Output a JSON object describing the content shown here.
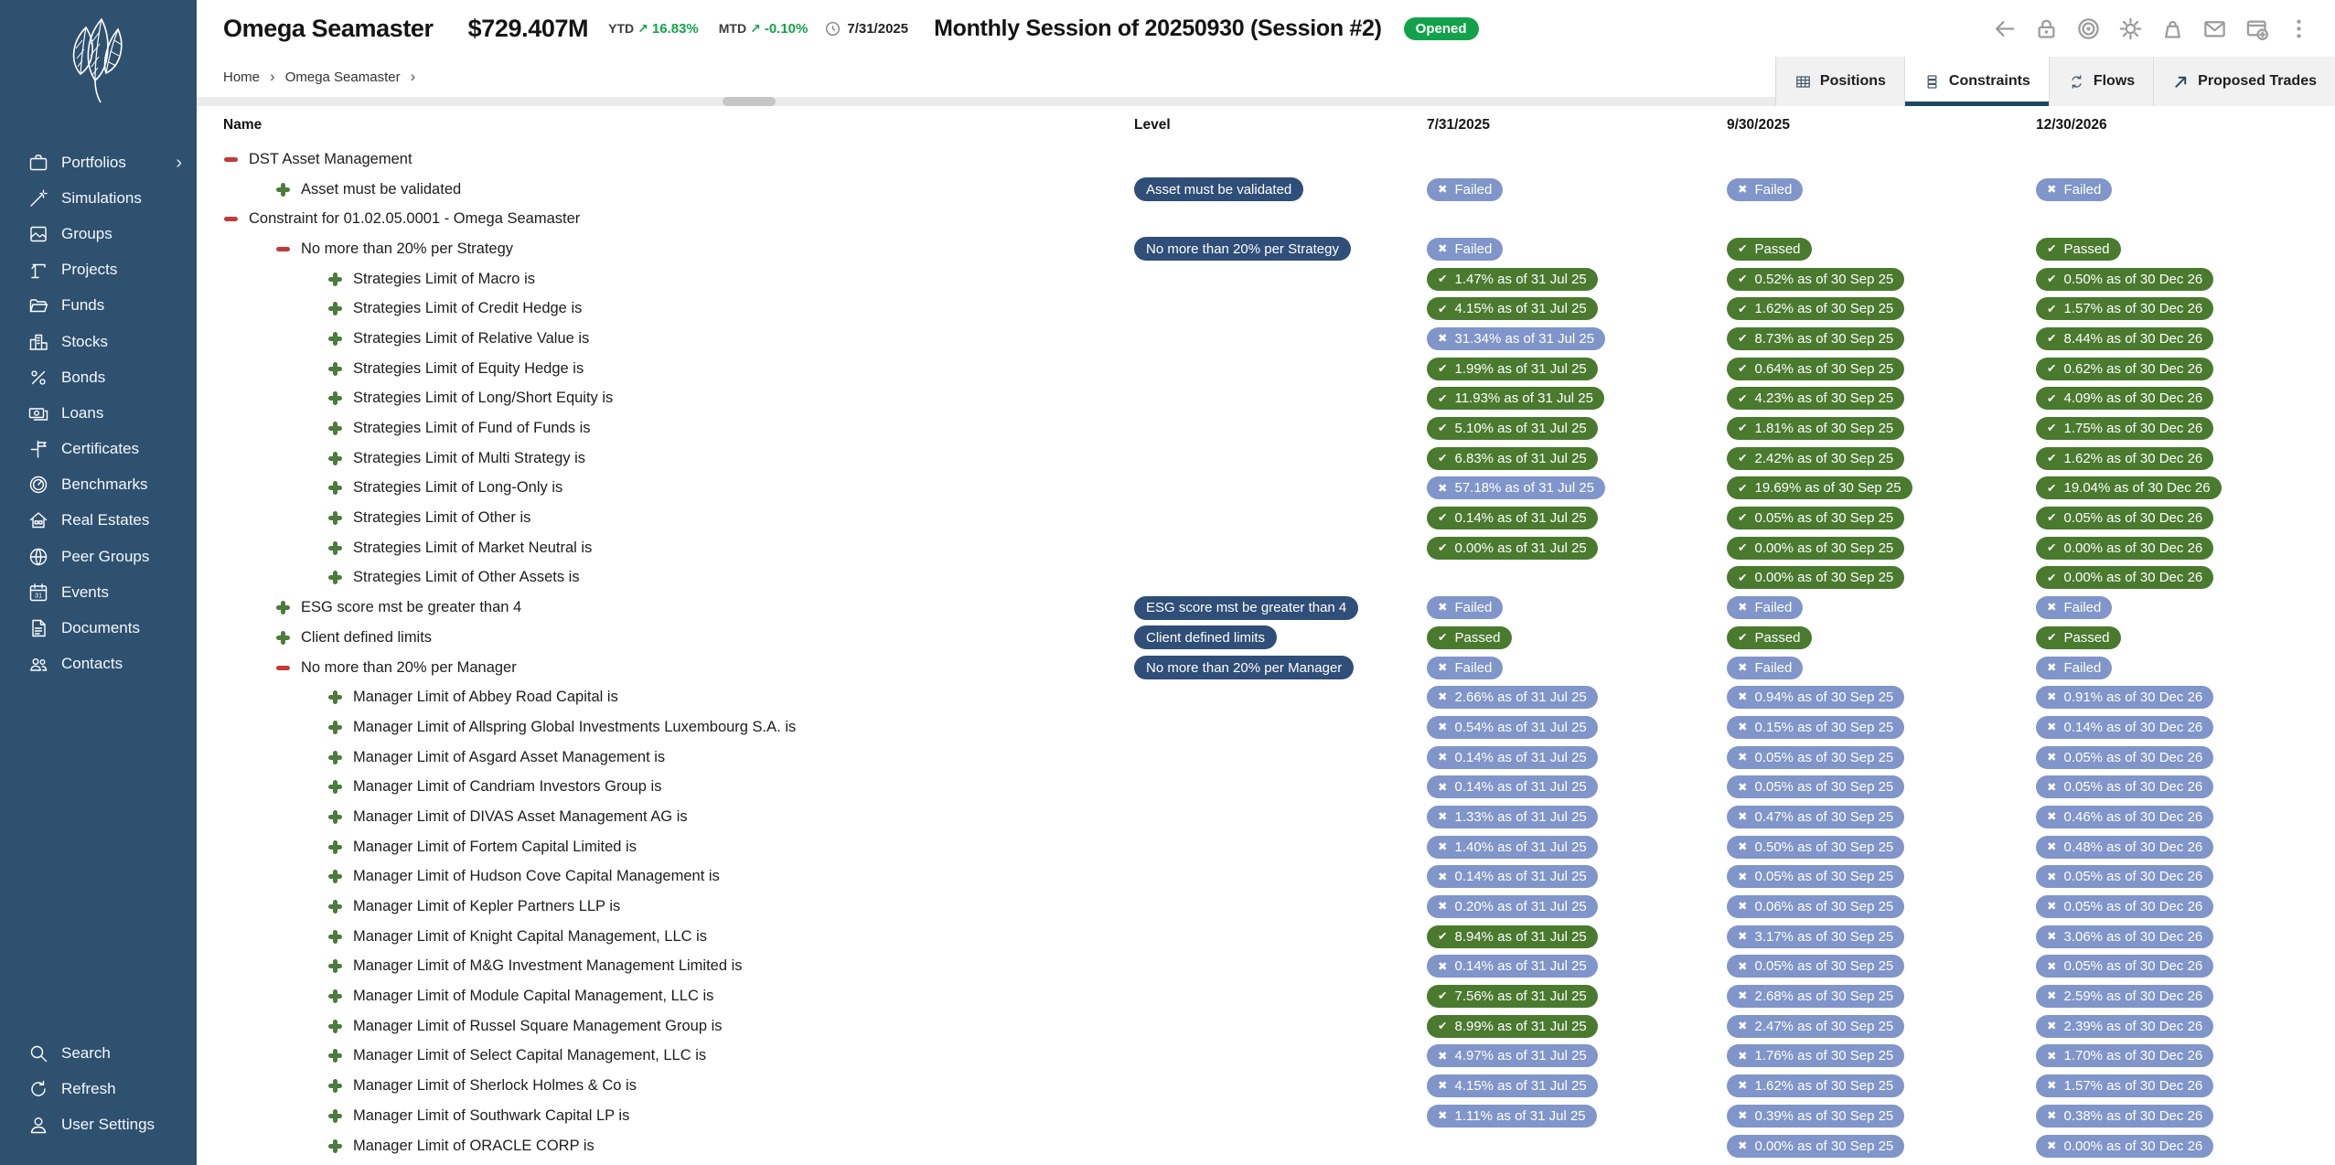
{
  "header": {
    "title": "Omega Seamaster",
    "value": "$729.407M",
    "ytd_label": "YTD",
    "ytd_value": "16.83%",
    "mtd_label": "MTD",
    "mtd_value": "-0.10%",
    "as_of_date": "7/31/2025",
    "session_title": "Monthly Session of 20250930 (Session #2)",
    "status": "Opened",
    "toolbar": [
      {
        "icon": "back-icon"
      },
      {
        "icon": "lock-icon"
      },
      {
        "icon": "target-icon"
      },
      {
        "icon": "gear-icon"
      },
      {
        "icon": "weight-icon"
      },
      {
        "icon": "mail-icon"
      },
      {
        "icon": "new-window-icon"
      },
      {
        "icon": "kebab-menu-icon"
      }
    ]
  },
  "breadcrumb": [
    "Home",
    "Omega Seamaster"
  ],
  "tabs": [
    {
      "label": "Positions",
      "icon": "grid-icon",
      "active": false
    },
    {
      "label": "Constraints",
      "icon": "stack-icon",
      "active": true
    },
    {
      "label": "Flows",
      "icon": "cycle-icon",
      "active": false
    },
    {
      "label": "Proposed Trades",
      "icon": "trade-arrow-icon",
      "active": false
    }
  ],
  "sidebar": {
    "items": [
      {
        "label": "Portfolios",
        "icon": "briefcase-icon",
        "chevron": true
      },
      {
        "label": "Simulations",
        "icon": "wand-icon"
      },
      {
        "label": "Groups",
        "icon": "picture-icon"
      },
      {
        "label": "Projects",
        "icon": "crane-icon"
      },
      {
        "label": "Funds",
        "icon": "folder-icon"
      },
      {
        "label": "Stocks",
        "icon": "buildings-icon"
      },
      {
        "label": "Bonds",
        "icon": "percent-icon"
      },
      {
        "label": "Loans",
        "icon": "cash-icon"
      },
      {
        "label": "Certificates",
        "icon": "signpost-icon"
      },
      {
        "label": "Benchmarks",
        "icon": "gauge-icon"
      },
      {
        "label": "Real Estates",
        "icon": "house-icon"
      },
      {
        "label": "Peer Groups",
        "icon": "globe-icon"
      },
      {
        "label": "Events",
        "icon": "calendar-icon"
      },
      {
        "label": "Documents",
        "icon": "document-icon"
      },
      {
        "label": "Contacts",
        "icon": "people-icon"
      }
    ],
    "footer": [
      {
        "label": "Search",
        "icon": "search-icon"
      },
      {
        "label": "Refresh",
        "icon": "refresh-icon"
      },
      {
        "label": "User Settings",
        "icon": "user-icon"
      }
    ]
  },
  "table": {
    "columns": [
      "Name",
      "Level",
      "7/31/2025",
      "9/30/2025",
      "12/30/2026"
    ],
    "rows": [
      {
        "name": "DST Asset Management",
        "indent": 0,
        "toggle": "minus",
        "level": null,
        "cells": [
          null,
          null,
          null
        ]
      },
      {
        "name": "Asset must be validated",
        "indent": 1,
        "toggle": "plus",
        "level": "Asset must be validated",
        "cells": [
          [
            "Failed",
            "fail"
          ],
          [
            "Failed",
            "fail"
          ],
          [
            "Failed",
            "fail"
          ]
        ]
      },
      {
        "name": "Constraint for 01.02.05.0001 - Omega Seamaster",
        "indent": 0,
        "toggle": "minus",
        "level": null,
        "cells": [
          null,
          null,
          null
        ]
      },
      {
        "name": "No more than 20% per Strategy",
        "indent": 1,
        "toggle": "minus",
        "level": "No more than 20% per Strategy",
        "cells": [
          [
            "Failed",
            "fail"
          ],
          [
            "Passed",
            "pass"
          ],
          [
            "Passed",
            "pass"
          ]
        ]
      },
      {
        "name": "Strategies Limit of Macro is",
        "indent": 2,
        "toggle": "plus",
        "level": null,
        "cells": [
          [
            "1.47% as of 31 Jul 25",
            "pass"
          ],
          [
            "0.52% as of 30 Sep 25",
            "pass"
          ],
          [
            "0.50% as of 30 Dec 26",
            "pass"
          ]
        ]
      },
      {
        "name": "Strategies Limit of Credit Hedge is",
        "indent": 2,
        "toggle": "plus",
        "level": null,
        "cells": [
          [
            "4.15% as of 31 Jul 25",
            "pass"
          ],
          [
            "1.62% as of 30 Sep 25",
            "pass"
          ],
          [
            "1.57% as of 30 Dec 26",
            "pass"
          ]
        ]
      },
      {
        "name": "Strategies Limit of Relative Value is",
        "indent": 2,
        "toggle": "plus",
        "level": null,
        "cells": [
          [
            "31.34% as of 31 Jul 25",
            "fail"
          ],
          [
            "8.73% as of 30 Sep 25",
            "pass"
          ],
          [
            "8.44% as of 30 Dec 26",
            "pass"
          ]
        ]
      },
      {
        "name": "Strategies Limit of Equity Hedge is",
        "indent": 2,
        "toggle": "plus",
        "level": null,
        "cells": [
          [
            "1.99% as of 31 Jul 25",
            "pass"
          ],
          [
            "0.64% as of 30 Sep 25",
            "pass"
          ],
          [
            "0.62% as of 30 Dec 26",
            "pass"
          ]
        ]
      },
      {
        "name": "Strategies Limit of Long/Short Equity is",
        "indent": 2,
        "toggle": "plus",
        "level": null,
        "cells": [
          [
            "11.93% as of 31 Jul 25",
            "pass"
          ],
          [
            "4.23% as of 30 Sep 25",
            "pass"
          ],
          [
            "4.09% as of 30 Dec 26",
            "pass"
          ]
        ]
      },
      {
        "name": "Strategies Limit of Fund of Funds is",
        "indent": 2,
        "toggle": "plus",
        "level": null,
        "cells": [
          [
            "5.10% as of 31 Jul 25",
            "pass"
          ],
          [
            "1.81% as of 30 Sep 25",
            "pass"
          ],
          [
            "1.75% as of 30 Dec 26",
            "pass"
          ]
        ]
      },
      {
        "name": "Strategies Limit of Multi Strategy is",
        "indent": 2,
        "toggle": "plus",
        "level": null,
        "cells": [
          [
            "6.83% as of 31 Jul 25",
            "pass"
          ],
          [
            "2.42% as of 30 Sep 25",
            "pass"
          ],
          [
            "1.62% as of 30 Dec 26",
            "pass"
          ]
        ]
      },
      {
        "name": "Strategies Limit of Long-Only is",
        "indent": 2,
        "toggle": "plus",
        "level": null,
        "cells": [
          [
            "57.18% as of 31 Jul 25",
            "fail"
          ],
          [
            "19.69% as of 30 Sep 25",
            "pass"
          ],
          [
            "19.04% as of 30 Dec 26",
            "pass"
          ]
        ]
      },
      {
        "name": "Strategies Limit of Other is",
        "indent": 2,
        "toggle": "plus",
        "level": null,
        "cells": [
          [
            "0.14% as of 31 Jul 25",
            "pass"
          ],
          [
            "0.05% as of 30 Sep 25",
            "pass"
          ],
          [
            "0.05% as of 30 Dec 26",
            "pass"
          ]
        ]
      },
      {
        "name": "Strategies Limit of Market Neutral is",
        "indent": 2,
        "toggle": "plus",
        "level": null,
        "cells": [
          [
            "0.00% as of 31 Jul 25",
            "pass"
          ],
          [
            "0.00% as of 30 Sep 25",
            "pass"
          ],
          [
            "0.00% as of 30 Dec 26",
            "pass"
          ]
        ]
      },
      {
        "name": "Strategies Limit of Other Assets is",
        "indent": 2,
        "toggle": "plus",
        "level": null,
        "cells": [
          null,
          [
            "0.00% as of 30 Sep 25",
            "pass"
          ],
          [
            "0.00% as of 30 Dec 26",
            "pass"
          ]
        ]
      },
      {
        "name": "ESG score mst be greater than 4",
        "indent": 1,
        "toggle": "plus",
        "level": "ESG score mst be greater than 4",
        "cells": [
          [
            "Failed",
            "fail"
          ],
          [
            "Failed",
            "fail"
          ],
          [
            "Failed",
            "fail"
          ]
        ]
      },
      {
        "name": "Client defined limits",
        "indent": 1,
        "toggle": "plus",
        "level": "Client defined limits",
        "cells": [
          [
            "Passed",
            "pass"
          ],
          [
            "Passed",
            "pass"
          ],
          [
            "Passed",
            "pass"
          ]
        ]
      },
      {
        "name": "No more than 20% per Manager",
        "indent": 1,
        "toggle": "minus",
        "level": "No more than 20% per Manager",
        "cells": [
          [
            "Failed",
            "fail"
          ],
          [
            "Failed",
            "fail"
          ],
          [
            "Failed",
            "fail"
          ]
        ]
      },
      {
        "name": "Manager Limit of Abbey Road Capital is",
        "indent": 2,
        "toggle": "plus",
        "level": null,
        "cells": [
          [
            "2.66% as of 31 Jul 25",
            "fail"
          ],
          [
            "0.94% as of 30 Sep 25",
            "fail"
          ],
          [
            "0.91% as of 30 Dec 26",
            "fail"
          ]
        ]
      },
      {
        "name": "Manager Limit of Allspring Global Investments Luxembourg S.A. is",
        "indent": 2,
        "toggle": "plus",
        "level": null,
        "cells": [
          [
            "0.54% as of 31 Jul 25",
            "fail"
          ],
          [
            "0.15% as of 30 Sep 25",
            "fail"
          ],
          [
            "0.14% as of 30 Dec 26",
            "fail"
          ]
        ]
      },
      {
        "name": "Manager Limit of Asgard Asset Management is",
        "indent": 2,
        "toggle": "plus",
        "level": null,
        "cells": [
          [
            "0.14% as of 31 Jul 25",
            "fail"
          ],
          [
            "0.05% as of 30 Sep 25",
            "fail"
          ],
          [
            "0.05% as of 30 Dec 26",
            "fail"
          ]
        ]
      },
      {
        "name": "Manager Limit of Candriam Investors Group is",
        "indent": 2,
        "toggle": "plus",
        "level": null,
        "cells": [
          [
            "0.14% as of 31 Jul 25",
            "fail"
          ],
          [
            "0.05% as of 30 Sep 25",
            "fail"
          ],
          [
            "0.05% as of 30 Dec 26",
            "fail"
          ]
        ]
      },
      {
        "name": "Manager Limit of DIVAS Asset Management AG is",
        "indent": 2,
        "toggle": "plus",
        "level": null,
        "cells": [
          [
            "1.33% as of 31 Jul 25",
            "fail"
          ],
          [
            "0.47% as of 30 Sep 25",
            "fail"
          ],
          [
            "0.46% as of 30 Dec 26",
            "fail"
          ]
        ]
      },
      {
        "name": "Manager Limit of Fortem Capital Limited is",
        "indent": 2,
        "toggle": "plus",
        "level": null,
        "cells": [
          [
            "1.40% as of 31 Jul 25",
            "fail"
          ],
          [
            "0.50% as of 30 Sep 25",
            "fail"
          ],
          [
            "0.48% as of 30 Dec 26",
            "fail"
          ]
        ]
      },
      {
        "name": "Manager Limit of Hudson Cove Capital Management is",
        "indent": 2,
        "toggle": "plus",
        "level": null,
        "cells": [
          [
            "0.14% as of 31 Jul 25",
            "fail"
          ],
          [
            "0.05% as of 30 Sep 25",
            "fail"
          ],
          [
            "0.05% as of 30 Dec 26",
            "fail"
          ]
        ]
      },
      {
        "name": "Manager Limit of Kepler Partners LLP is",
        "indent": 2,
        "toggle": "plus",
        "level": null,
        "cells": [
          [
            "0.20% as of 31 Jul 25",
            "fail"
          ],
          [
            "0.06% as of 30 Sep 25",
            "fail"
          ],
          [
            "0.05% as of 30 Dec 26",
            "fail"
          ]
        ]
      },
      {
        "name": "Manager Limit of Knight Capital Management, LLC is",
        "indent": 2,
        "toggle": "plus",
        "level": null,
        "cells": [
          [
            "8.94% as of 31 Jul 25",
            "pass"
          ],
          [
            "3.17% as of 30 Sep 25",
            "fail"
          ],
          [
            "3.06% as of 30 Dec 26",
            "fail"
          ]
        ]
      },
      {
        "name": "Manager Limit of M&G Investment Management Limited is",
        "indent": 2,
        "toggle": "plus",
        "level": null,
        "cells": [
          [
            "0.14% as of 31 Jul 25",
            "fail"
          ],
          [
            "0.05% as of 30 Sep 25",
            "fail"
          ],
          [
            "0.05% as of 30 Dec 26",
            "fail"
          ]
        ]
      },
      {
        "name": "Manager Limit of Module Capital Management, LLC is",
        "indent": 2,
        "toggle": "plus",
        "level": null,
        "cells": [
          [
            "7.56% as of 31 Jul 25",
            "pass"
          ],
          [
            "2.68% as of 30 Sep 25",
            "fail"
          ],
          [
            "2.59% as of 30 Dec 26",
            "fail"
          ]
        ]
      },
      {
        "name": "Manager Limit of Russel Square Management Group is",
        "indent": 2,
        "toggle": "plus",
        "level": null,
        "cells": [
          [
            "8.99% as of 31 Jul 25",
            "pass"
          ],
          [
            "2.47% as of 30 Sep 25",
            "fail"
          ],
          [
            "2.39% as of 30 Dec 26",
            "fail"
          ]
        ]
      },
      {
        "name": "Manager Limit of Select Capital Management, LLC is",
        "indent": 2,
        "toggle": "plus",
        "level": null,
        "cells": [
          [
            "4.97% as of 31 Jul 25",
            "fail"
          ],
          [
            "1.76% as of 30 Sep 25",
            "fail"
          ],
          [
            "1.70% as of 30 Dec 26",
            "fail"
          ]
        ]
      },
      {
        "name": "Manager Limit of Sherlock Holmes & Co is",
        "indent": 2,
        "toggle": "plus",
        "level": null,
        "cells": [
          [
            "4.15% as of 31 Jul 25",
            "fail"
          ],
          [
            "1.62% as of 30 Sep 25",
            "fail"
          ],
          [
            "1.57% as of 30 Dec 26",
            "fail"
          ]
        ]
      },
      {
        "name": "Manager Limit of Southwark Capital LP is",
        "indent": 2,
        "toggle": "plus",
        "level": null,
        "cells": [
          [
            "1.11% as of 31 Jul 25",
            "fail"
          ],
          [
            "0.39% as of 30 Sep 25",
            "fail"
          ],
          [
            "0.38% as of 30 Dec 26",
            "fail"
          ]
        ]
      },
      {
        "name": "Manager Limit of ORACLE CORP is",
        "indent": 2,
        "toggle": "plus",
        "level": null,
        "cells": [
          null,
          [
            "0.00% as of 30 Sep 25",
            "fail"
          ],
          [
            "0.00% as of 30 Dec 26",
            "fail"
          ]
        ]
      }
    ]
  },
  "colors": {
    "sidebar_bg": "#2F5170",
    "badge_pass_green": "#4A7A2E",
    "badge_fail_blue": "#8095C9",
    "level_pill_navy": "#2F4E78",
    "opened_green": "#12A24B",
    "metric_green": "#16A34A",
    "toggle_minus_red": "#C23A3A",
    "toggle_plus_green": "#4D7A3D",
    "tab_underline_navy": "#1D4A63"
  }
}
